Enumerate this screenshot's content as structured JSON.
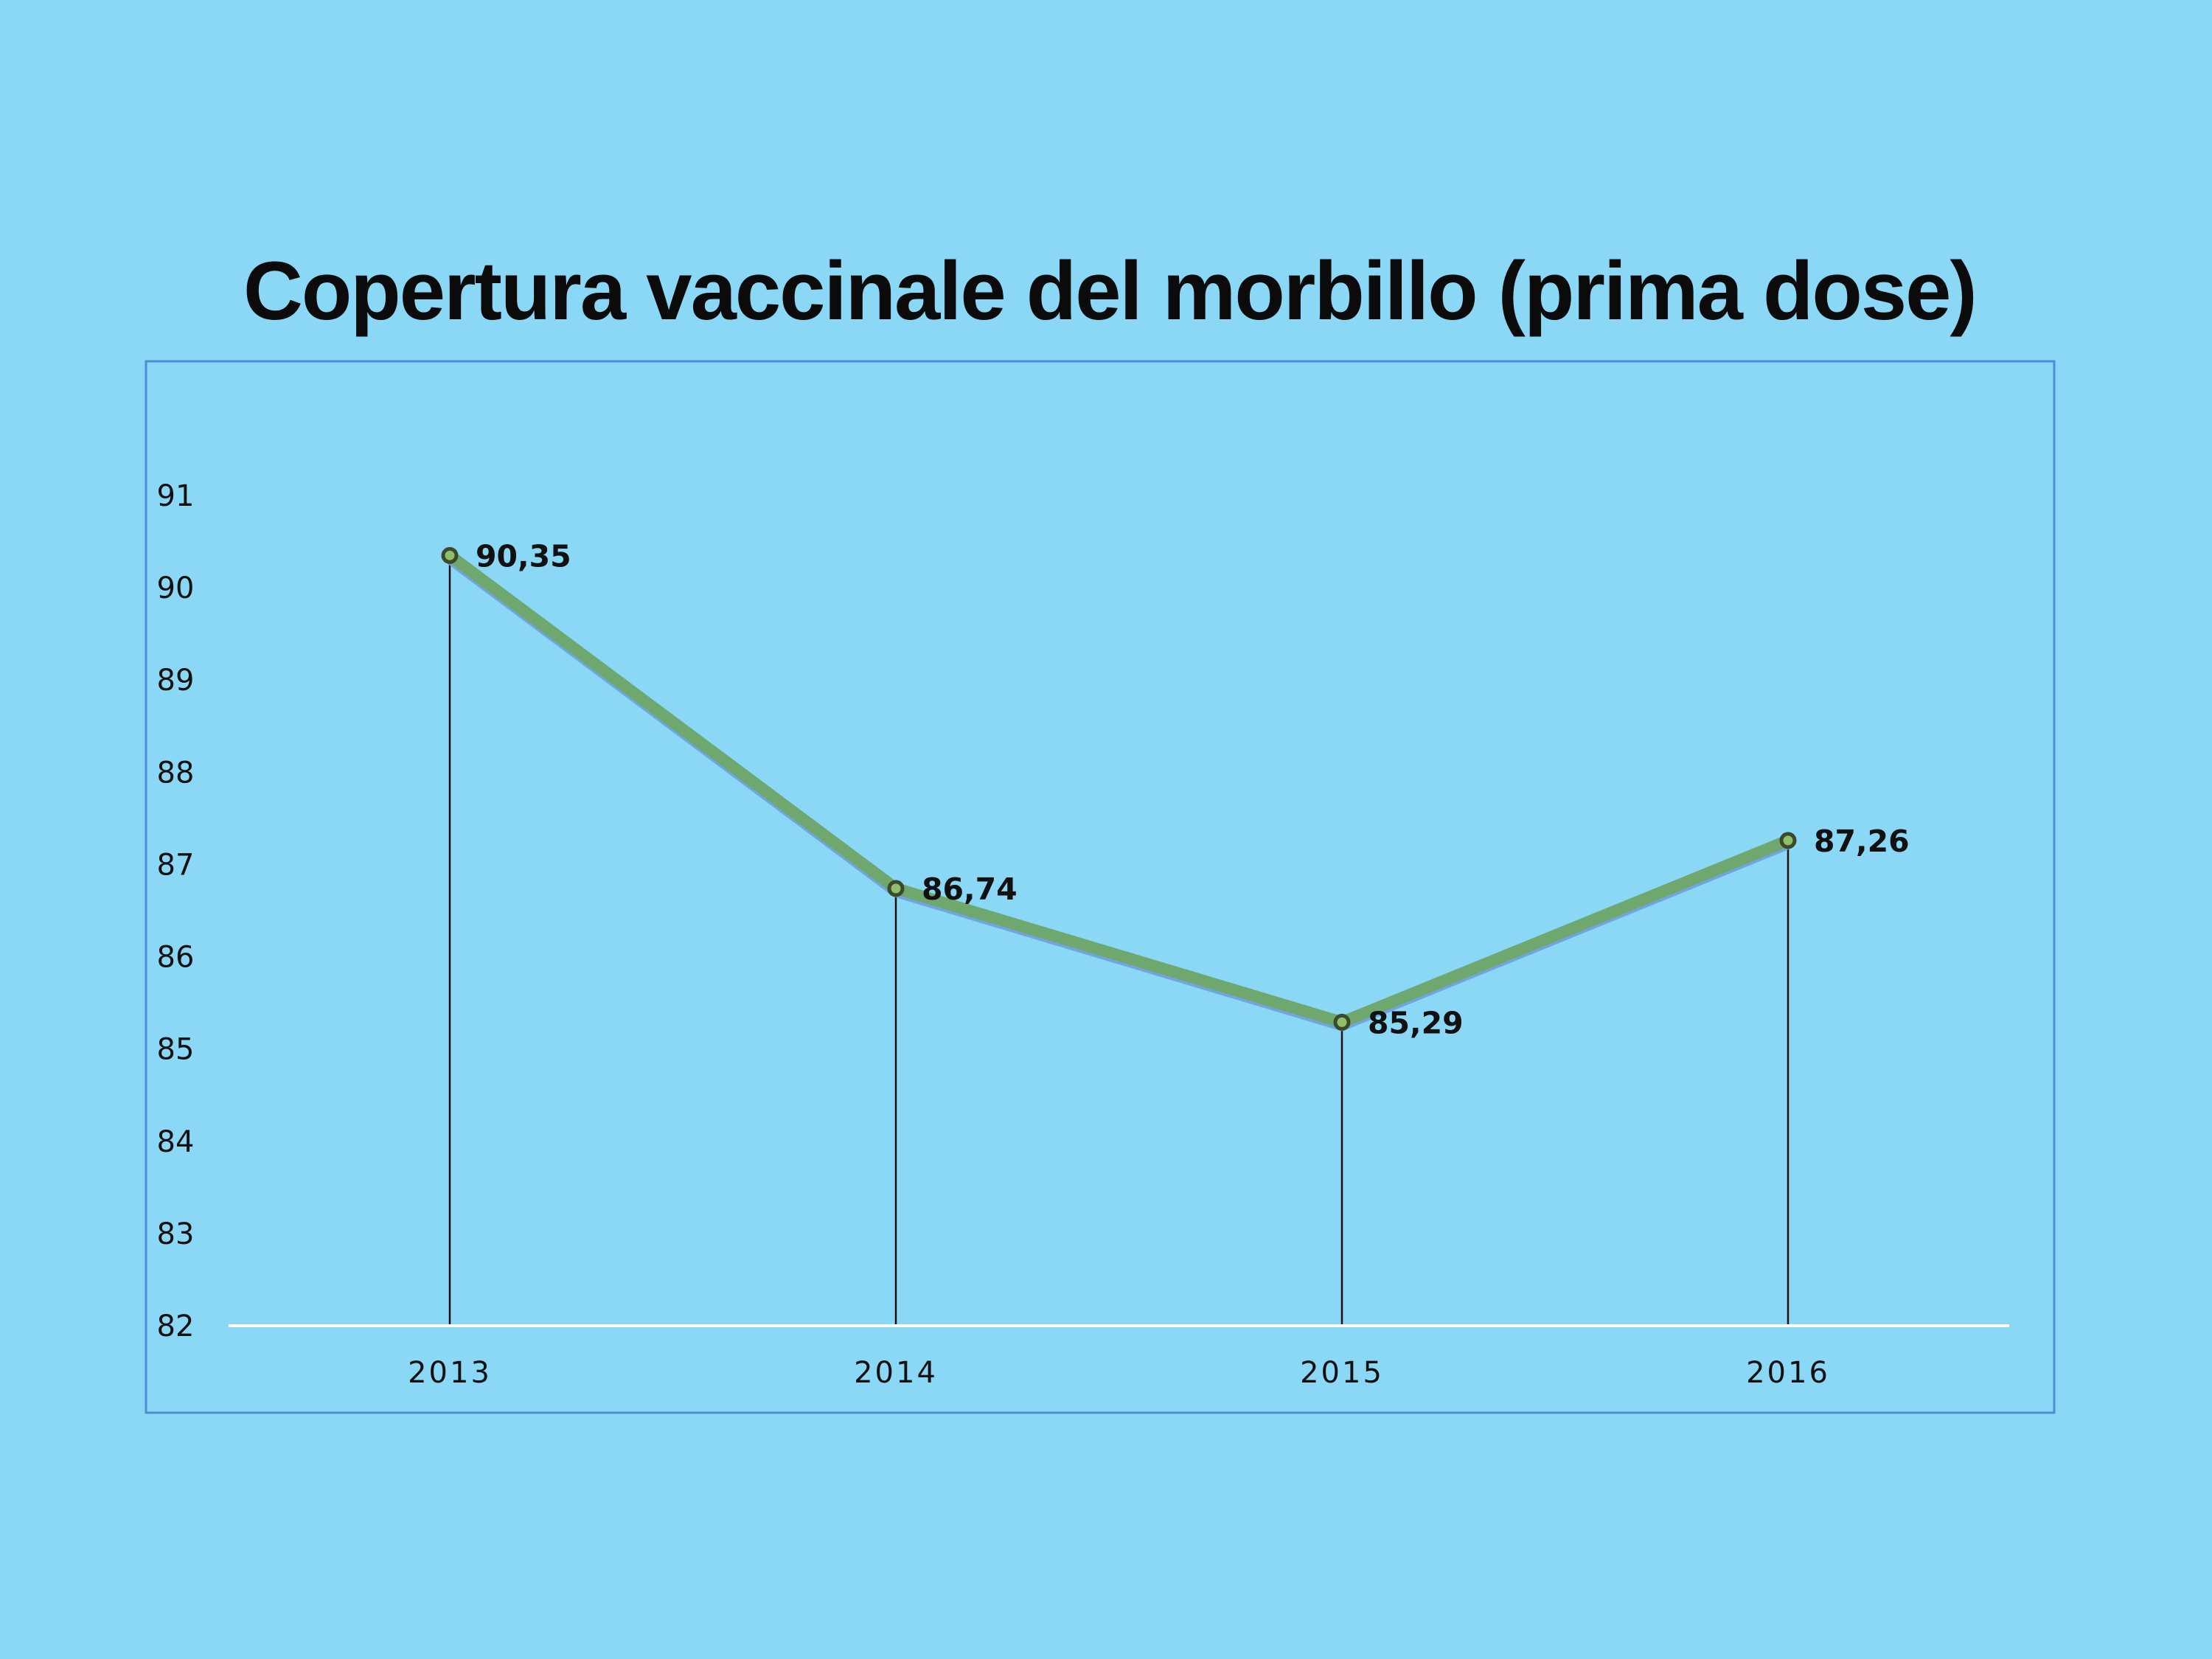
{
  "chart_data": {
    "type": "line",
    "title": "Copertura vaccinale del morbillo (prima dose)",
    "categories": [
      "2013",
      "2014",
      "2015",
      "2016"
    ],
    "values": [
      90.35,
      86.74,
      85.29,
      87.26
    ],
    "value_labels": [
      "90,35",
      "86,74",
      "85,29",
      "87,26"
    ],
    "yticks": [
      "82",
      "83",
      "84",
      "85",
      "86",
      "87",
      "88",
      "89",
      "90",
      "91"
    ],
    "ylim": [
      82,
      91
    ],
    "grid": false,
    "drop_lines": true,
    "legend": "none",
    "colors": {
      "background": "#8BD8F6",
      "line": "#6FA86E",
      "line_shadow": "#6E9EE0",
      "marker": "#3A4A2A",
      "frame": "#4A90D0",
      "axis": "#FFFFFF"
    }
  }
}
